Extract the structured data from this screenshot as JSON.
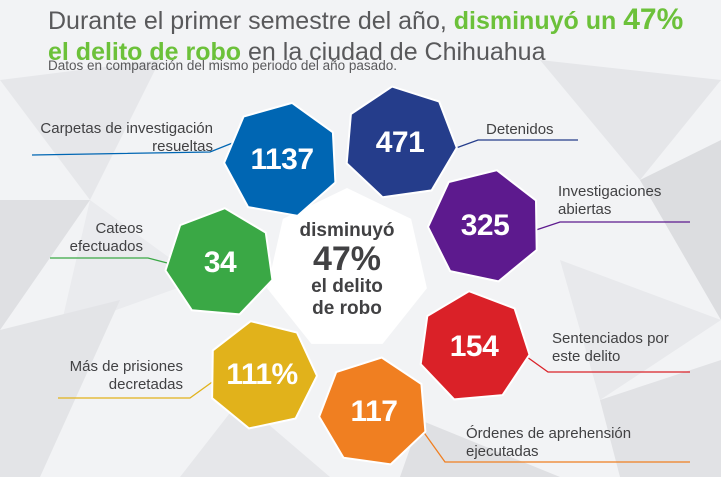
{
  "header": {
    "title_part1": "Durante el primer semestre del año, ",
    "title_hl1": "disminuyó un ",
    "title_hl_num": "47%",
    "title_hl2": "el delito de robo",
    "title_part2": " en la ciudad de Chihuahua",
    "subtitle": "Datos en comparación del mismo periodo del año pasado."
  },
  "center": {
    "line1": "disminuyó",
    "value": "47%",
    "line3": "el delito",
    "line4": "de robo"
  },
  "nodes": [
    {
      "id": "carpetas",
      "value": "1137",
      "label1": "Carpetas de investigación",
      "label2": "resueltas",
      "color": "#0066b3"
    },
    {
      "id": "detenidos",
      "value": "471",
      "label1": "Detenidos",
      "label2": "",
      "color": "#253d8b"
    },
    {
      "id": "investigaciones",
      "value": "325",
      "label1": "Investigaciones",
      "label2": "abiertas",
      "color": "#5d1a8e"
    },
    {
      "id": "sentenciados",
      "value": "154",
      "label1": "Sentenciados por",
      "label2": "este delito",
      "color": "#da2128"
    },
    {
      "id": "ordenes",
      "value": "117",
      "label1": "Órdenes de aprehensión",
      "label2": "ejecutadas",
      "color": "#f07f21"
    },
    {
      "id": "prisiones",
      "value": "111%",
      "label1": "Más de prisiones",
      "label2": "decretadas",
      "color": "#e1b21b"
    },
    {
      "id": "cateos",
      "value": "34",
      "label1": "Cateos",
      "label2": "efectuados",
      "color": "#3aa845"
    }
  ]
}
